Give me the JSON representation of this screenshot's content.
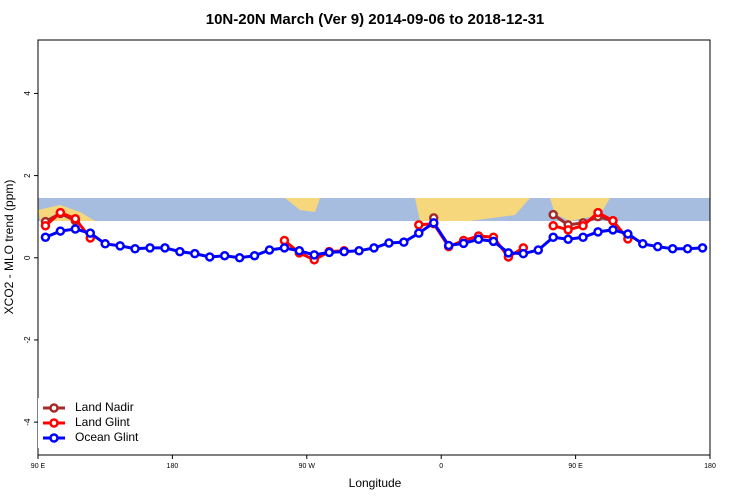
{
  "chart_data": {
    "type": "line",
    "title": "10N-20N March (Ver 9)   2014-09-06 to 2018-12-31",
    "x_label": "Longitude",
    "y_label": "XCO2 - MLO trend (ppm)",
    "x": [
      95,
      105,
      115,
      125,
      135,
      145,
      155,
      165,
      175,
      185,
      195,
      205,
      215,
      225,
      235,
      245,
      255,
      265,
      275,
      285,
      295,
      305,
      315,
      325,
      335,
      345,
      355,
      365,
      375,
      385,
      395,
      405,
      415,
      425,
      435,
      445,
      455,
      465,
      475,
      485,
      495,
      505,
      515,
      525,
      535
    ],
    "xlim": [
      90,
      540
    ],
    "xticks": [
      {
        "value": 90,
        "label": "90 E"
      },
      180,
      {
        "value": 270,
        "label": "90 W"
      },
      {
        "value": 360,
        "label": "0"
      },
      {
        "value": 450,
        "label": "90 E"
      },
      {
        "value": 540,
        "label": "180"
      }
    ],
    "ylim": [
      -4.8,
      5.3
    ],
    "yticks": [
      -4,
      -2,
      0,
      2,
      4
    ],
    "legend": "bottom-left",
    "series": [
      {
        "name": "Land Nadir",
        "color": "#a52a2a",
        "values": [
          0.88,
          1.08,
          0.9,
          null,
          null,
          null,
          null,
          null,
          null,
          null,
          null,
          null,
          null,
          null,
          null,
          null,
          null,
          null,
          null,
          null,
          null,
          null,
          null,
          null,
          null,
          null,
          0.97,
          null,
          null,
          null,
          null,
          null,
          null,
          null,
          1.05,
          0.8,
          0.85,
          1.0,
          0.9,
          null,
          null,
          null,
          null,
          null,
          null
        ]
      },
      {
        "name": "Land Glint",
        "color": "#ff0000",
        "values": [
          0.78,
          1.1,
          0.95,
          0.48,
          null,
          null,
          null,
          null,
          null,
          null,
          null,
          null,
          null,
          null,
          null,
          null,
          0.42,
          0.12,
          -0.05,
          0.15,
          0.17,
          null,
          null,
          null,
          null,
          0.8,
          0.83,
          0.27,
          0.42,
          0.53,
          0.5,
          0.02,
          0.24,
          null,
          0.78,
          0.68,
          0.78,
          1.1,
          0.9,
          0.46,
          null,
          null,
          null,
          null,
          null
        ]
      },
      {
        "name": "Ocean Glint",
        "color": "#0000ff",
        "values": [
          0.5,
          0.65,
          0.7,
          0.6,
          0.34,
          0.29,
          0.22,
          0.24,
          0.24,
          0.15,
          0.1,
          0.02,
          0.05,
          0.0,
          0.05,
          0.19,
          0.24,
          0.17,
          0.07,
          0.13,
          0.15,
          0.17,
          0.24,
          0.36,
          0.38,
          0.6,
          0.85,
          0.3,
          0.35,
          0.45,
          0.4,
          0.12,
          0.1,
          0.19,
          0.5,
          0.45,
          0.5,
          0.63,
          0.68,
          0.58,
          0.34,
          0.27,
          0.22,
          0.22,
          0.24
        ]
      }
    ]
  }
}
